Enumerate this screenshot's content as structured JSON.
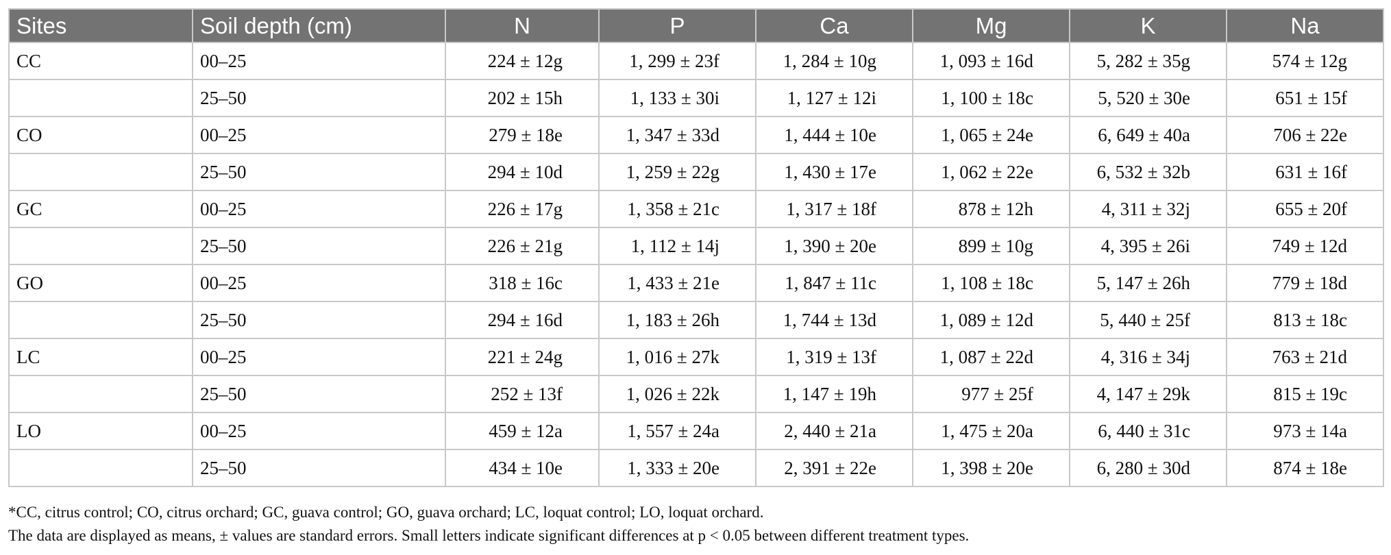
{
  "table": {
    "headers": [
      "Sites",
      "Soil depth (cm)",
      "N",
      "P",
      "Ca",
      "Mg",
      "K",
      "Na"
    ],
    "rows": [
      [
        "CC",
        "00–25",
        "224 ± 12g",
        "1, 299 ± 23f",
        "1, 284 ± 10g",
        "1, 093 ± 16d",
        "5, 282 ± 35g",
        "574 ± 12g"
      ],
      [
        "",
        "25–50",
        "202 ± 15h",
        "1, 133 ± 30i",
        "1, 127 ± 12i",
        "1, 100 ± 18c",
        "5, 520 ± 30e",
        "651 ± 15f"
      ],
      [
        "CO",
        "00–25",
        "279 ± 18e",
        "1, 347 ± 33d",
        "1, 444 ± 10e",
        "1, 065 ± 24e",
        "6, 649 ± 40a",
        "706 ± 22e"
      ],
      [
        "",
        "25–50",
        "294 ± 10d",
        "1, 259 ± 22g",
        "1, 430 ± 17e",
        "1, 062 ± 22e",
        "6, 532 ± 32b",
        "631 ± 16f"
      ],
      [
        "GC",
        "00–25",
        "226 ± 17g",
        "1, 358 ± 21c",
        "1, 317 ± 18f",
        "878 ± 12h",
        "4, 311 ± 32j",
        "655 ± 20f"
      ],
      [
        "",
        "25–50",
        "226 ± 21g",
        "1, 112 ± 14j",
        "1, 390 ± 20e",
        "899 ± 10g",
        "4, 395 ± 26i",
        "749 ± 12d"
      ],
      [
        "GO",
        "00–25",
        "318 ± 16c",
        "1, 433 ± 21e",
        "1, 847 ± 11c",
        "1, 108 ± 18c",
        "5, 147 ± 26h",
        "779 ± 18d"
      ],
      [
        "",
        "25–50",
        "294 ± 16d",
        "1, 183 ± 26h",
        "1, 744 ± 13d",
        "1, 089 ± 12d",
        "5, 440 ± 25f",
        "813 ± 18c"
      ],
      [
        "LC",
        "00–25",
        "221 ± 24g",
        "1, 016 ± 27k",
        "1, 319 ± 13f",
        "1, 087 ± 22d",
        "4, 316 ± 34j",
        "763 ± 21d"
      ],
      [
        "",
        "25–50",
        "252 ± 13f",
        "1, 026 ± 22k",
        "1, 147 ± 19h",
        "977 ± 25f",
        "4, 147 ± 29k",
        "815 ± 19c"
      ],
      [
        "LO",
        "00–25",
        "459 ± 12a",
        "1, 557 ± 24a",
        "2, 440 ± 21a",
        "1, 475 ± 20a",
        "6, 440 ± 31c",
        "973 ± 14a"
      ],
      [
        "",
        "25–50",
        "434 ± 10e",
        "1, 333 ± 20e",
        "2, 391 ± 22e",
        "1, 398 ± 20e",
        "6, 280 ± 30d",
        "874 ± 18e"
      ]
    ]
  },
  "footnotes": {
    "abbreviations": "*CC, citrus control; CO, citrus orchard; GC, guava control; GO, guava orchard; LC, loquat control; LO, loquat orchard.",
    "explanation": "The data are displayed as means, ± values are standard errors. Small letters indicate significant differences at p < 0.05 between different treatment types."
  },
  "colors": {
    "header_bg": "#737373",
    "header_text": "#ffffff",
    "grid": "#c8c8c8"
  }
}
